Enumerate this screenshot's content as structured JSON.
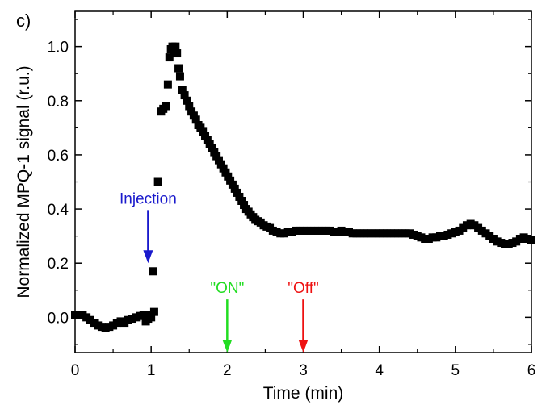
{
  "chart_data": {
    "type": "scatter",
    "panel_label": "c)",
    "xlabel": "Time (min)",
    "ylabel": "Normalized MPQ-1 signal (r.u.)",
    "xlim": [
      0,
      6
    ],
    "ylim": [
      -0.13,
      1.13
    ],
    "xticks": [
      0,
      1,
      2,
      3,
      4,
      5,
      6
    ],
    "yticks": [
      0.0,
      0.2,
      0.4,
      0.6,
      0.8,
      1.0
    ],
    "ytick_labels": [
      "0.0",
      "0.2",
      "0.4",
      "0.6",
      "0.8",
      "1.0"
    ],
    "grid": false,
    "legend": "none",
    "marker": "square",
    "marker_color": "#000000",
    "series": [
      {
        "x": [
          0.0,
          0.05,
          0.1,
          0.15,
          0.2,
          0.25,
          0.3,
          0.35,
          0.4,
          0.45,
          0.5,
          0.55,
          0.6,
          0.65,
          0.7,
          0.75,
          0.8,
          0.85,
          0.9,
          0.93,
          0.96,
          0.98,
          1.0,
          1.02,
          1.04,
          1.09,
          1.13,
          1.16,
          1.19,
          1.22,
          1.24,
          1.26,
          1.28,
          1.3,
          1.32,
          1.34,
          1.36,
          1.38,
          1.41,
          1.44,
          1.47,
          1.5,
          1.53,
          1.56,
          1.59,
          1.62,
          1.65,
          1.68,
          1.71,
          1.74,
          1.77,
          1.8,
          1.83,
          1.86,
          1.89,
          1.92,
          1.95,
          1.98,
          2.01,
          2.04,
          2.07,
          2.1,
          2.13,
          2.16,
          2.19,
          2.22,
          2.25,
          2.28,
          2.31,
          2.34,
          2.37,
          2.4,
          2.44,
          2.48,
          2.52,
          2.56,
          2.6,
          2.65,
          2.7,
          2.75,
          2.8,
          2.85,
          2.9,
          2.95,
          3.0,
          3.05,
          3.1,
          3.15,
          3.2,
          3.25,
          3.3,
          3.35,
          3.4,
          3.45,
          3.5,
          3.55,
          3.6,
          3.65,
          3.7,
          3.75,
          3.8,
          3.85,
          3.9,
          3.95,
          4.0,
          4.05,
          4.1,
          4.15,
          4.2,
          4.25,
          4.3,
          4.35,
          4.4,
          4.45,
          4.5,
          4.55,
          4.6,
          4.65,
          4.7,
          4.75,
          4.8,
          4.85,
          4.9,
          4.95,
          5.0,
          5.05,
          5.1,
          5.15,
          5.2,
          5.25,
          5.3,
          5.35,
          5.4,
          5.45,
          5.5,
          5.55,
          5.6,
          5.65,
          5.7,
          5.75,
          5.8,
          5.85,
          5.9,
          5.95,
          6.0
        ],
        "y": [
          0.01,
          0.01,
          0.01,
          0.0,
          -0.01,
          -0.02,
          -0.03,
          -0.035,
          -0.04,
          -0.035,
          -0.03,
          -0.02,
          -0.015,
          -0.02,
          -0.01,
          -0.005,
          0.0,
          0.005,
          0.01,
          -0.015,
          -0.005,
          0.01,
          0.0,
          0.17,
          0.02,
          0.5,
          0.76,
          0.77,
          0.78,
          0.86,
          0.96,
          0.99,
          1.0,
          0.985,
          1.0,
          0.975,
          0.92,
          0.89,
          0.84,
          0.82,
          0.8,
          0.78,
          0.76,
          0.745,
          0.73,
          0.71,
          0.7,
          0.685,
          0.67,
          0.655,
          0.64,
          0.625,
          0.61,
          0.595,
          0.58,
          0.565,
          0.55,
          0.535,
          0.52,
          0.505,
          0.49,
          0.475,
          0.46,
          0.445,
          0.43,
          0.415,
          0.4,
          0.39,
          0.38,
          0.37,
          0.36,
          0.355,
          0.35,
          0.34,
          0.335,
          0.33,
          0.32,
          0.315,
          0.31,
          0.31,
          0.315,
          0.315,
          0.32,
          0.32,
          0.32,
          0.32,
          0.32,
          0.32,
          0.32,
          0.32,
          0.32,
          0.32,
          0.315,
          0.315,
          0.32,
          0.315,
          0.315,
          0.31,
          0.31,
          0.31,
          0.31,
          0.31,
          0.31,
          0.31,
          0.31,
          0.31,
          0.31,
          0.31,
          0.31,
          0.31,
          0.31,
          0.31,
          0.31,
          0.305,
          0.3,
          0.295,
          0.29,
          0.29,
          0.295,
          0.295,
          0.3,
          0.3,
          0.305,
          0.31,
          0.315,
          0.32,
          0.33,
          0.34,
          0.345,
          0.34,
          0.33,
          0.32,
          0.31,
          0.3,
          0.29,
          0.28,
          0.275,
          0.27,
          0.27,
          0.275,
          0.28,
          0.29,
          0.295,
          0.29,
          0.285
        ]
      }
    ],
    "annotations": [
      {
        "label": "Injection",
        "x": 0.96,
        "y_text": 0.42,
        "y_arrow_tip": 0.2,
        "color": "#1a1acc"
      },
      {
        "label": "\"ON\"",
        "x": 2.0,
        "y_text": 0.09,
        "y_arrow_tip": -0.13,
        "color": "#22dd22"
      },
      {
        "label": "\"Off\"",
        "x": 3.0,
        "y_text": 0.09,
        "y_arrow_tip": -0.13,
        "color": "#ee1111"
      }
    ]
  }
}
